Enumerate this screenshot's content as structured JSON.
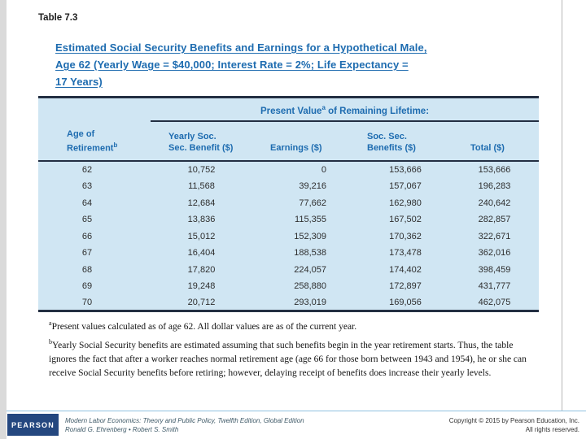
{
  "slide": {
    "label": "Table 7.3",
    "title_lines": [
      "Estimated Social Security Benefits and Earnings for a Hypothetical Male,",
      "Age 62 (Yearly Wage = $40,000; Interest Rate = 2%; Life Expectancy =",
      "17 Years)"
    ]
  },
  "table": {
    "span_header": {
      "prefix": "Present Value",
      "sup": "a",
      "suffix": " of Remaining Lifetime:"
    },
    "columns": [
      {
        "line1": "Age of",
        "line2": "Retirement",
        "sup": "b"
      },
      {
        "line1": "Yearly Soc.",
        "line2": "Sec. Benefit ($)",
        "sup": ""
      },
      {
        "line1": "",
        "line2": "Earnings ($)",
        "sup": ""
      },
      {
        "line1": "Soc. Sec.",
        "line2": "Benefits ($)",
        "sup": ""
      },
      {
        "line1": "",
        "line2": "Total ($)",
        "sup": ""
      }
    ],
    "rows": [
      [
        "62",
        "10,752",
        "0",
        "153,666",
        "153,666"
      ],
      [
        "63",
        "11,568",
        "39,216",
        "157,067",
        "196,283"
      ],
      [
        "64",
        "12,684",
        "77,662",
        "162,980",
        "240,642"
      ],
      [
        "65",
        "13,836",
        "115,355",
        "167,502",
        "282,857"
      ],
      [
        "66",
        "15,012",
        "152,309",
        "170,362",
        "322,671"
      ],
      [
        "67",
        "16,404",
        "188,538",
        "173,478",
        "362,016"
      ],
      [
        "68",
        "17,820",
        "224,057",
        "174,402",
        "398,459"
      ],
      [
        "69",
        "19,248",
        "258,880",
        "172,897",
        "431,777"
      ],
      [
        "70",
        "20,712",
        "293,019",
        "169,056",
        "462,075"
      ]
    ]
  },
  "footnotes": [
    {
      "marker": "a",
      "text": "Present values calculated as of age 62. All dollar values are as of the current year."
    },
    {
      "marker": "b",
      "text": "Yearly Social Security benefits are estimated assuming that such benefits begin in the year retirement starts. Thus, the table ignores the fact that after a worker reaches normal retirement age (age 66 for those born between 1943 and 1954), he or she can receive Social Security benefits before retiring; however, delaying receipt of benefits does increase their yearly levels."
    }
  ],
  "footer": {
    "logo_text": "PEARSON",
    "book_title": "Modern Labor Economics: Theory and Public Policy, Twelfth Edition, Global Edition",
    "authors": "Ronald G. Ehrenberg • Robert S. Smith",
    "copyright_line1": "Copyright © 2015 by Pearson Education, Inc.",
    "copyright_line2": "All rights reserved."
  },
  "colors": {
    "accent_blue": "#1e6cb0",
    "table_bg": "#d0e6f3",
    "rule_dark": "#232f42",
    "logo_blue": "#24477f",
    "footer_line_blue": "#8fc0e0"
  }
}
